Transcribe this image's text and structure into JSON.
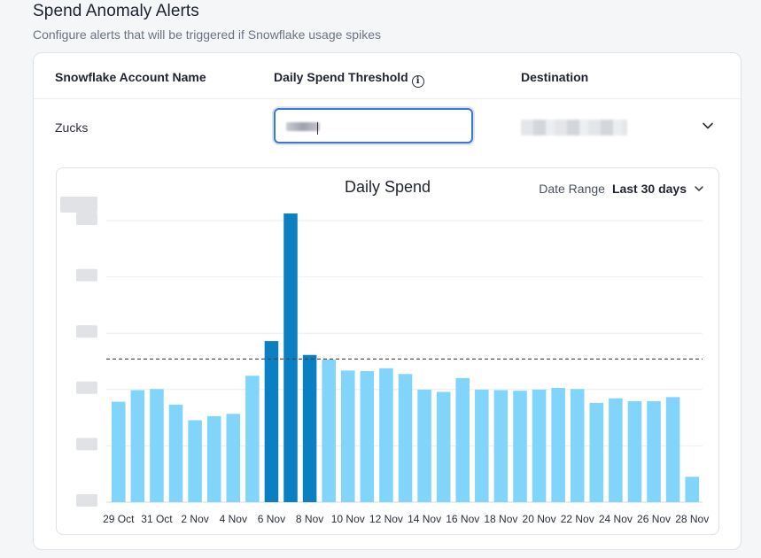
{
  "header": {
    "title": "Spend Anomaly Alerts",
    "subtitle": "Configure alerts that will be triggered if Snowflake usage spikes"
  },
  "table": {
    "columns": [
      "Snowflake Account Name",
      "Daily Spend Threshold",
      "Destination"
    ],
    "row": {
      "account": "Zucks",
      "threshold_value": "",
      "destination": ""
    }
  },
  "icons": {
    "info": "info-circle-icon",
    "dropdown": "chevron-down-icon"
  },
  "colors": {
    "bar_normal": "#81d4fa",
    "bar_anomaly": "#0a7fc2",
    "input_focus": "#3f78c9"
  },
  "chart": {
    "title": "Daily Spend",
    "date_range_label": "Date Range",
    "date_range_value": "Last 30 days"
  },
  "chart_data": {
    "type": "bar",
    "title": "Daily Spend",
    "categories": [
      "29 Oct",
      "30 Oct",
      "31 Oct",
      "1 Nov",
      "2 Nov",
      "3 Nov",
      "4 Nov",
      "5 Nov",
      "6 Nov",
      "7 Nov",
      "8 Nov",
      "9 Nov",
      "10 Nov",
      "11 Nov",
      "12 Nov",
      "13 Nov",
      "14 Nov",
      "15 Nov",
      "16 Nov",
      "17 Nov",
      "18 Nov",
      "19 Nov",
      "20 Nov",
      "21 Nov",
      "22 Nov",
      "23 Nov",
      "24 Nov",
      "25 Nov",
      "26 Nov",
      "27 Nov",
      "28 Nov"
    ],
    "tick_labels": [
      "29 Oct",
      "31 Oct",
      "2 Nov",
      "4 Nov",
      "6 Nov",
      "8 Nov",
      "10 Nov",
      "12 Nov",
      "14 Nov",
      "16 Nov",
      "18 Nov",
      "20 Nov",
      "22 Nov",
      "24 Nov",
      "26 Nov",
      "28 Nov"
    ],
    "values": [
      174,
      194,
      196,
      169,
      142,
      149,
      153,
      219,
      279,
      500,
      255,
      247,
      228,
      227,
      232,
      222,
      195,
      191,
      215,
      195,
      194,
      193,
      195,
      198,
      196,
      172,
      180,
      175,
      175,
      182,
      44
    ],
    "anomaly": [
      false,
      false,
      false,
      false,
      false,
      false,
      false,
      false,
      true,
      true,
      true,
      false,
      false,
      false,
      false,
      false,
      false,
      false,
      false,
      false,
      false,
      false,
      false,
      false,
      false,
      false,
      false,
      false,
      false,
      false,
      false
    ],
    "threshold": 248,
    "ylim": [
      0,
      520
    ],
    "grid": true,
    "y_tick_labels_redacted": true
  }
}
